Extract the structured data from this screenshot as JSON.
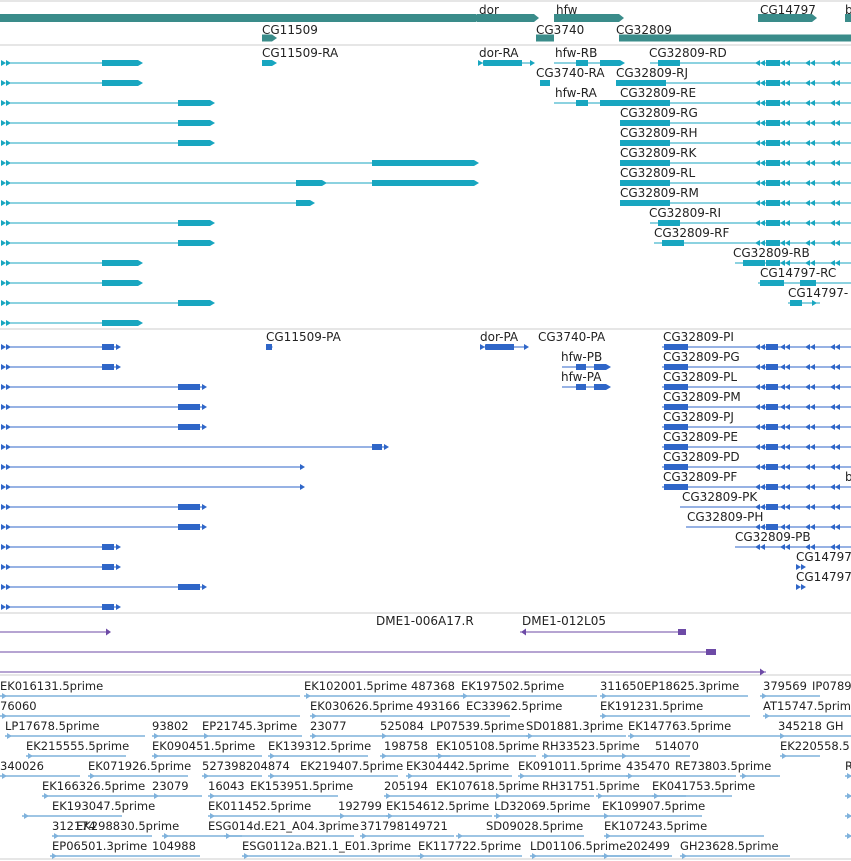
{
  "colors": {
    "gene": "#3a8c8a",
    "transcript": "#18a6c0",
    "protein": "#2f66c8",
    "clone": "#6d4aa6",
    "est": "#7fb2dc",
    "divider": "#cccccc"
  },
  "tracks": {
    "genes": {
      "labels": [
        {
          "text": "CG11509"
        },
        {
          "text": "dor"
        },
        {
          "text": "hfw"
        },
        {
          "text": "CG3740"
        },
        {
          "text": "CG32809"
        },
        {
          "text": "CG14797"
        },
        {
          "text": "b"
        }
      ]
    },
    "transcripts": {
      "labels": [
        {
          "text": "CG11509-RA"
        },
        {
          "text": "dor-RA"
        },
        {
          "text": "hfw-RB"
        },
        {
          "text": "CG3740-RA"
        },
        {
          "text": "hfw-RA"
        },
        {
          "text": "CG32809-RD"
        },
        {
          "text": "CG32809-RJ"
        },
        {
          "text": "CG32809-RE"
        },
        {
          "text": "CG32809-RG"
        },
        {
          "text": "CG32809-RH"
        },
        {
          "text": "CG32809-RK"
        },
        {
          "text": "CG32809-RL"
        },
        {
          "text": "CG32809-RM"
        },
        {
          "text": "CG32809-RI"
        },
        {
          "text": "CG32809-RF"
        },
        {
          "text": "CG32809-RB"
        },
        {
          "text": "CG14797-RC"
        },
        {
          "text": "CG14797-"
        }
      ]
    },
    "proteins": {
      "labels": [
        {
          "text": "CG11509-PA"
        },
        {
          "text": "dor-PA"
        },
        {
          "text": "CG3740-PA"
        },
        {
          "text": "hfw-PB"
        },
        {
          "text": "hfw-PA"
        },
        {
          "text": "CG32809-PI"
        },
        {
          "text": "CG32809-PG"
        },
        {
          "text": "CG32809-PL"
        },
        {
          "text": "CG32809-PM"
        },
        {
          "text": "CG32809-PJ"
        },
        {
          "text": "CG32809-PE"
        },
        {
          "text": "CG32809-PD"
        },
        {
          "text": "CG32809-PF"
        },
        {
          "text": "CG32809-PK"
        },
        {
          "text": "CG32809-PH"
        },
        {
          "text": "CG32809-PB"
        },
        {
          "text": "CG14797"
        },
        {
          "text": "CG14797"
        },
        {
          "text": "b"
        }
      ]
    },
    "clones": {
      "labels": [
        {
          "text": "DME1-006A17.R"
        },
        {
          "text": "DME1-012L05"
        }
      ]
    },
    "ests": {
      "labels": [
        {
          "text": "EK016131.5prime"
        },
        {
          "text": "EK102001.5prime"
        },
        {
          "text": "487368"
        },
        {
          "text": "EK197502.5prime"
        },
        {
          "text": "311650"
        },
        {
          "text": "EP18625.3prime"
        },
        {
          "text": "379569"
        },
        {
          "text": "IP0789"
        },
        {
          "text": "76060"
        },
        {
          "text": "EK030626.5prime"
        },
        {
          "text": "493166"
        },
        {
          "text": "EC33962.5prime"
        },
        {
          "text": "EK191231.5prime"
        },
        {
          "text": "AT15747.5prime"
        },
        {
          "text": "LP17678.5prime"
        },
        {
          "text": "93802"
        },
        {
          "text": "EP21745.3prime"
        },
        {
          "text": "23077"
        },
        {
          "text": "525084"
        },
        {
          "text": "LP07539.5prime"
        },
        {
          "text": "SD01881.3prime"
        },
        {
          "text": "EK147763.5prime"
        },
        {
          "text": "345218"
        },
        {
          "text": "GH"
        },
        {
          "text": "EK215555.5prime"
        },
        {
          "text": "EK090451.5prime"
        },
        {
          "text": "EK139312.5prime"
        },
        {
          "text": "198758"
        },
        {
          "text": "EK105108.5prime"
        },
        {
          "text": "RH33523.5prime"
        },
        {
          "text": "514070"
        },
        {
          "text": "EK220558.5"
        },
        {
          "text": "340026"
        },
        {
          "text": "EK071926.5prime"
        },
        {
          "text": "527398204874"
        },
        {
          "text": "EK219407.5prime"
        },
        {
          "text": "EK304442.5prime"
        },
        {
          "text": "EK091011.5prime"
        },
        {
          "text": "435470"
        },
        {
          "text": "RE73803.5prime"
        },
        {
          "text": "EK166326.5prime"
        },
        {
          "text": "23079"
        },
        {
          "text": "16043"
        },
        {
          "text": "EK153951.5prime"
        },
        {
          "text": "205194"
        },
        {
          "text": "EK107618.5prime"
        },
        {
          "text": "RH31751.5prime"
        },
        {
          "text": "EK041753.5prime"
        },
        {
          "text": "EK193047.5prime"
        },
        {
          "text": "EK011452.5prime"
        },
        {
          "text": "192799"
        },
        {
          "text": "EK154612.5prime"
        },
        {
          "text": "LD32069.5prime"
        },
        {
          "text": "EK109907.5prime"
        },
        {
          "text": "312174"
        },
        {
          "text": "EK298830.5prime"
        },
        {
          "text": "ESG014d.E21_A04.3prime"
        },
        {
          "text": "371798149721"
        },
        {
          "text": "SD09028.5prime"
        },
        {
          "text": "EK107243.5prime"
        },
        {
          "text": "EP06501.3prime"
        },
        {
          "text": "104988"
        },
        {
          "text": "ESG0112a.B21.1_E01.3prime"
        },
        {
          "text": "EK117722.5prime"
        },
        {
          "text": "LD01106.5prime"
        },
        {
          "text": "202499"
        },
        {
          "text": "GH23628.5prime"
        },
        {
          "text": "R"
        }
      ]
    }
  }
}
